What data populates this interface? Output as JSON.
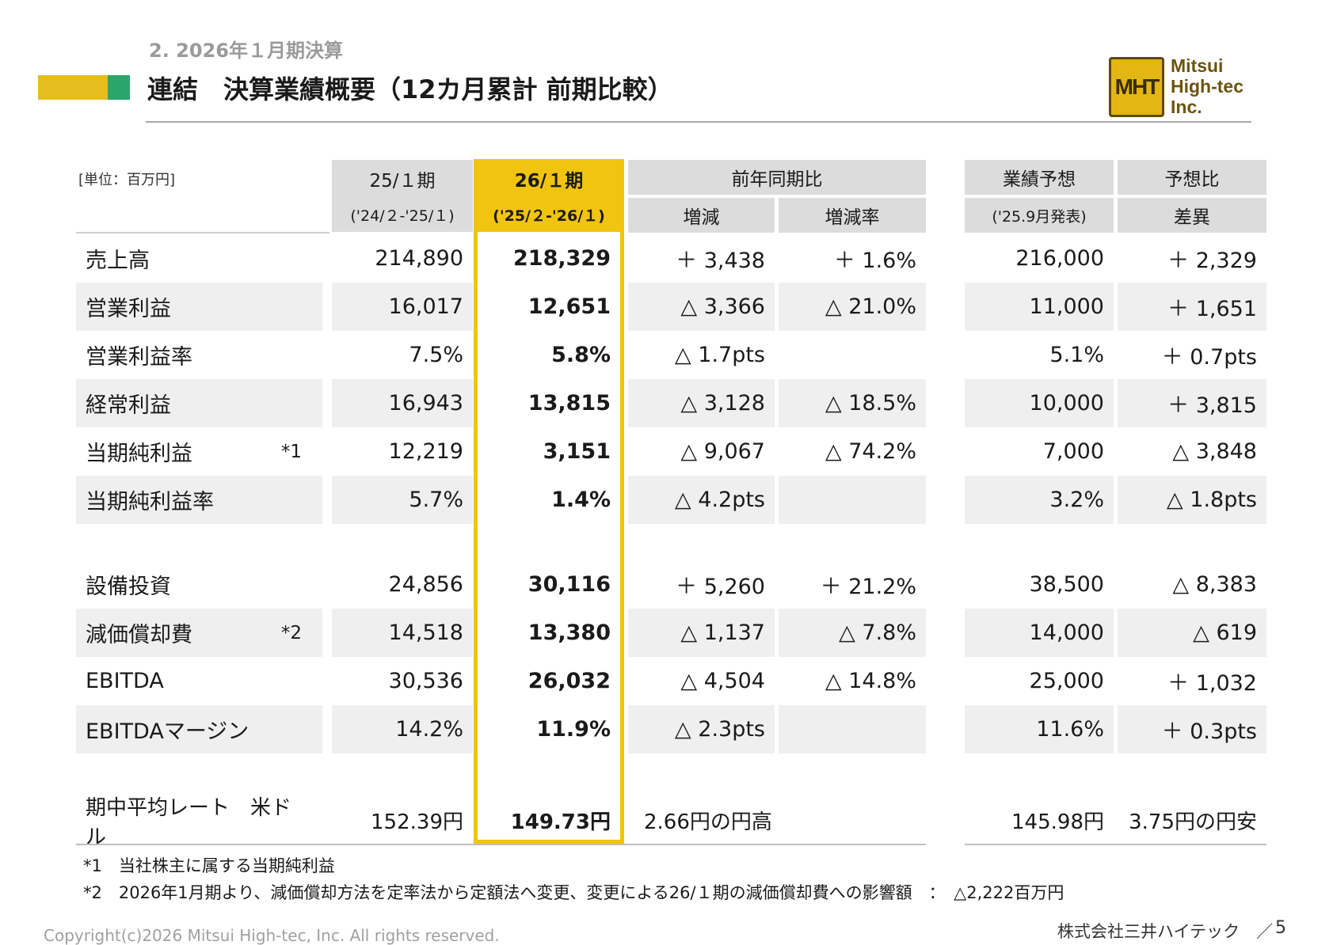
{
  "header": {
    "section": "2. 2026年１月期決算",
    "title": "連結　決算業績概要（12カ月累計 前期比較）",
    "colors": {
      "accent_yellow": "#e6bd1f",
      "accent_green": "#2aa56b",
      "highlight": "#f0c40f"
    }
  },
  "logo": {
    "mark": "MHT",
    "line1": "Mitsui",
    "line2": "High-tec",
    "line3": "Inc."
  },
  "table": {
    "unit": "[単位：百万円]",
    "columns": {
      "prev_period": {
        "label": "25/１期",
        "range": "('24/２-'25/１)"
      },
      "curr_period": {
        "label": "26/１期",
        "range": "('25/２-'26/１)"
      },
      "yoy": {
        "label": "前年同期比",
        "change": "増減",
        "change_rate": "増減率"
      },
      "forecast": {
        "label": "業績予想",
        "sub": "('25.9月発表)"
      },
      "vs_forecast": {
        "label": "予想比",
        "sub": "差異"
      }
    },
    "rows": [
      {
        "label": "売上高",
        "note": "",
        "prev": "214,890",
        "curr": "218,329",
        "change": "＋ 3,438",
        "rate": "＋ 1.6%",
        "forecast": "216,000",
        "diff": "＋ 2,329"
      },
      {
        "label": "営業利益",
        "note": "",
        "prev": "16,017",
        "curr": "12,651",
        "change": "△ 3,366",
        "rate": "△ 21.0%",
        "forecast": "11,000",
        "diff": "＋ 1,651"
      },
      {
        "label": "営業利益率",
        "note": "",
        "prev": "7.5%",
        "curr": "5.8%",
        "change": "△ 1.7pts",
        "rate": "",
        "forecast": "5.1%",
        "diff": "＋ 0.7pts"
      },
      {
        "label": "経常利益",
        "note": "",
        "prev": "16,943",
        "curr": "13,815",
        "change": "△ 3,128",
        "rate": "△ 18.5%",
        "forecast": "10,000",
        "diff": "＋ 3,815"
      },
      {
        "label": "当期純利益",
        "note": "*1",
        "prev": "12,219",
        "curr": "3,151",
        "change": "△ 9,067",
        "rate": "△ 74.2%",
        "forecast": "7,000",
        "diff": "△ 3,848"
      },
      {
        "label": "当期純利益率",
        "note": "",
        "prev": "5.7%",
        "curr": "1.4%",
        "change": "△ 4.2pts",
        "rate": "",
        "forecast": "3.2%",
        "diff": "△ 1.8pts"
      },
      {
        "label": "設備投資",
        "note": "",
        "prev": "24,856",
        "curr": "30,116",
        "change": "＋ 5,260",
        "rate": "＋ 21.2%",
        "forecast": "38,500",
        "diff": "△ 8,383"
      },
      {
        "label": "減価償却費",
        "note": "*2",
        "prev": "14,518",
        "curr": "13,380",
        "change": "△ 1,137",
        "rate": "△ 7.8%",
        "forecast": "14,000",
        "diff": "△ 619"
      },
      {
        "label": "EBITDA",
        "note": "",
        "prev": "30,536",
        "curr": "26,032",
        "change": "△ 4,504",
        "rate": "△ 14.8%",
        "forecast": "25,000",
        "diff": "＋ 1,032"
      },
      {
        "label": "EBITDAマージン",
        "note": "",
        "prev": "14.2%",
        "curr": "11.9%",
        "change": "△ 2.3pts",
        "rate": "",
        "forecast": "11.6%",
        "diff": "＋ 0.3pts"
      },
      {
        "label": "期中平均レート　米ドル",
        "note": "",
        "prev": "152.39円",
        "curr": "149.73円",
        "change": "2.66円の円高",
        "rate": "",
        "forecast": "145.98円",
        "diff": "3.75円の円安"
      }
    ]
  },
  "footnotes": {
    "note1": "*1　当社株主に属する当期純利益",
    "note2": "*2　2026年1月期より、減価償却方法を定率法から定額法へ変更、変更による26/１期の減価償却費への影響額　：　△2,222百万円"
  },
  "footer": {
    "copyright": "Copyright(c)2026 Mitsui High-tec, Inc. All rights reserved.",
    "company": "株式会社三井ハイテック　／",
    "page": "5"
  }
}
